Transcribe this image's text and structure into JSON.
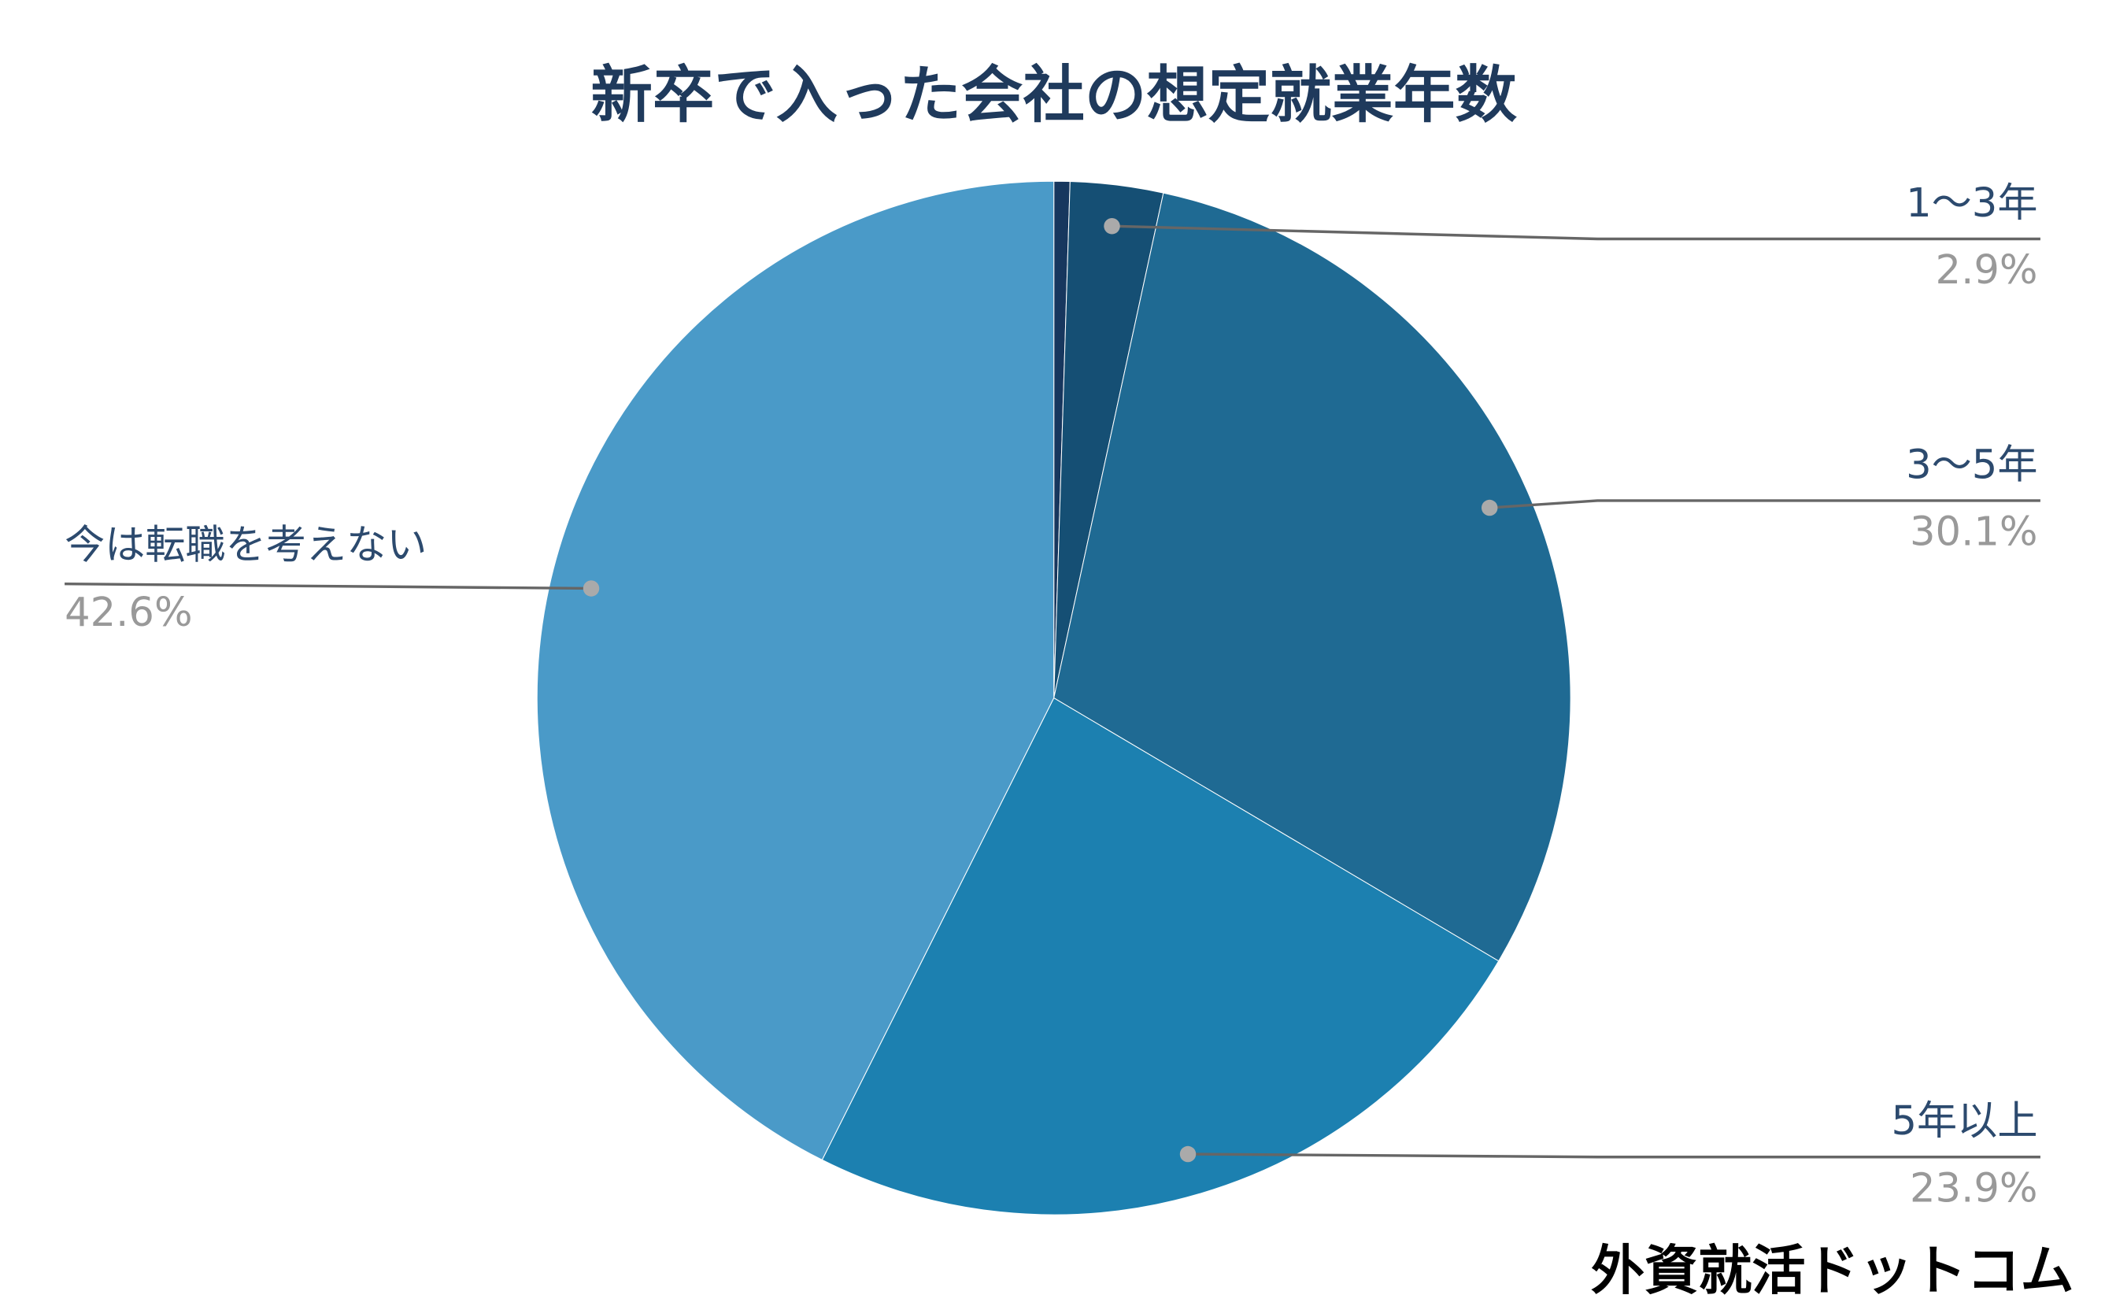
{
  "chart_data": {
    "type": "pie",
    "title": "新卒で入った会社の想定就業年数",
    "categories": [
      null,
      "1〜3年",
      "3〜5年",
      "5年以上",
      "今は転職を考えない"
    ],
    "values": [
      0.5,
      2.9,
      30.1,
      23.9,
      42.6
    ],
    "value_labels": [
      null,
      "2.9%",
      "30.1%",
      "23.9%",
      "42.6%"
    ],
    "colors": [
      "#17375e",
      "#154f74",
      "#1f6a93",
      "#1c80b0",
      "#4a9ac8"
    ],
    "watermark": "外資就活ドットコム"
  }
}
